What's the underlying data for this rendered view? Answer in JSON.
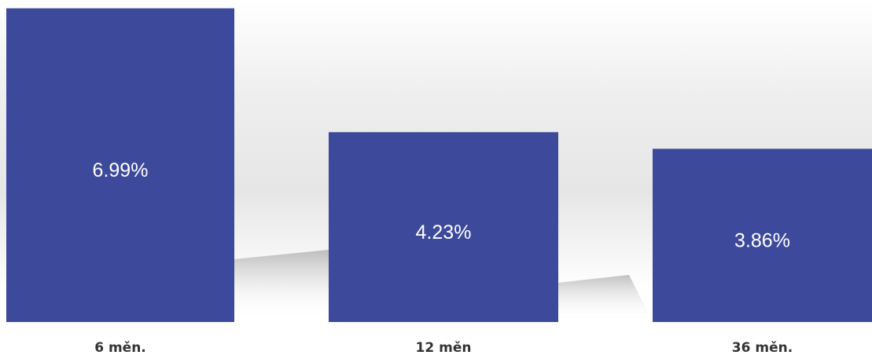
{
  "chart_data": {
    "type": "bar",
    "categories": [
      "6 měn.",
      "12 měn",
      "36 měn."
    ],
    "values": [
      6.99,
      4.23,
      3.86
    ],
    "value_labels": [
      "6.99%",
      "4.23%",
      "3.86%"
    ],
    "color": "#3d4a9c",
    "ylim": [
      0,
      7
    ]
  }
}
